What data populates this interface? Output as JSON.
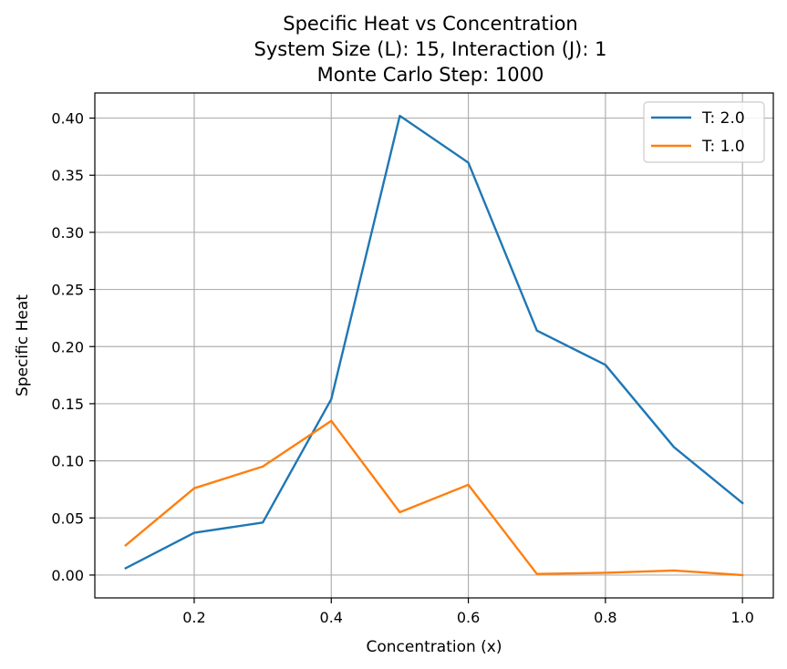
{
  "chart_data": {
    "type": "line",
    "title_lines": [
      "Specific Heat vs Concentration",
      "System Size (L): 15, Interaction (J): 1",
      "Monte Carlo Step: 1000"
    ],
    "xlabel": "Concentration (x)",
    "ylabel": "Specific Heat",
    "x": [
      0.1,
      0.2,
      0.3,
      0.4,
      0.5,
      0.6,
      0.7,
      0.8,
      0.9,
      1.0
    ],
    "series": [
      {
        "name": "T: 2.0",
        "color": "#1f77b4",
        "values": [
          0.006,
          0.037,
          0.046,
          0.154,
          0.402,
          0.361,
          0.214,
          0.184,
          0.112,
          0.063
        ]
      },
      {
        "name": "T: 1.0",
        "color": "#ff7f0e",
        "values": [
          0.026,
          0.076,
          0.095,
          0.135,
          0.055,
          0.079,
          0.001,
          0.002,
          0.004,
          0.0
        ]
      }
    ],
    "xlim": [
      0.055,
      1.045
    ],
    "ylim": [
      -0.02,
      0.422
    ],
    "xticks": [
      0.2,
      0.4,
      0.6,
      0.8,
      1.0
    ],
    "xtick_labels": [
      "0.2",
      "0.4",
      "0.6",
      "0.8",
      "1.0"
    ],
    "yticks": [
      0.0,
      0.05,
      0.1,
      0.15,
      0.2,
      0.25,
      0.3,
      0.35,
      0.4
    ],
    "ytick_labels": [
      "0.00",
      "0.05",
      "0.10",
      "0.15",
      "0.20",
      "0.25",
      "0.30",
      "0.35",
      "0.40"
    ],
    "grid": true,
    "legend_position": "top-right"
  }
}
